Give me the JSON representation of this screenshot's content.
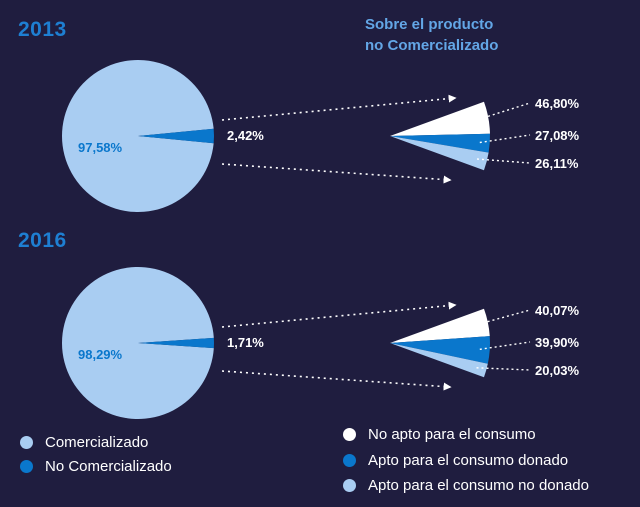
{
  "subtitle": [
    "Sobre el producto",
    "no Comercializado"
  ],
  "colors": {
    "light": "#a9cdf2",
    "blue": "#0a77cc",
    "white": "#ffffff",
    "bg": "#1f1d3f",
    "year": "#1e7fd2"
  },
  "chart_data": [
    {
      "type": "pie",
      "title": "2013",
      "labels": [
        "Comercializado",
        "No Comercializado"
      ],
      "values": [
        97.58,
        2.42
      ],
      "value_labels": [
        "97,58%",
        "2,42%"
      ],
      "breakdown": {
        "title": "Sobre el producto no Comercializado",
        "labels": [
          "No apto para el consumo",
          "Apto para el consumo donado",
          "Apto para el consumo no donado"
        ],
        "values": [
          46.8,
          27.08,
          26.11
        ],
        "value_labels": [
          "46,80%",
          "27,08%",
          "26,11%"
        ]
      }
    },
    {
      "type": "pie",
      "title": "2016",
      "labels": [
        "Comercializado",
        "No Comercializado"
      ],
      "values": [
        98.29,
        1.71
      ],
      "value_labels": [
        "98,29%",
        "1,71%"
      ],
      "breakdown": {
        "title": "Sobre el producto no Comercializado",
        "labels": [
          "No apto para el consumo",
          "Apto para el consumo donado",
          "Apto para el consumo no donado"
        ],
        "values": [
          40.07,
          39.9,
          20.03
        ],
        "value_labels": [
          "40,07%",
          "39,90%",
          "20,03%"
        ]
      }
    }
  ],
  "legend_left": [
    {
      "label": "Comercializado",
      "color": "#a9cdf2"
    },
    {
      "label": "No Comercializado",
      "color": "#0a77cc"
    }
  ],
  "legend_right": [
    {
      "label": "No apto para el consumo",
      "color": "#ffffff"
    },
    {
      "label": "Apto para el consumo donado",
      "color": "#0a77cc"
    },
    {
      "label": "Apto para el consumo no donado",
      "color": "#a9cdf2"
    }
  ]
}
